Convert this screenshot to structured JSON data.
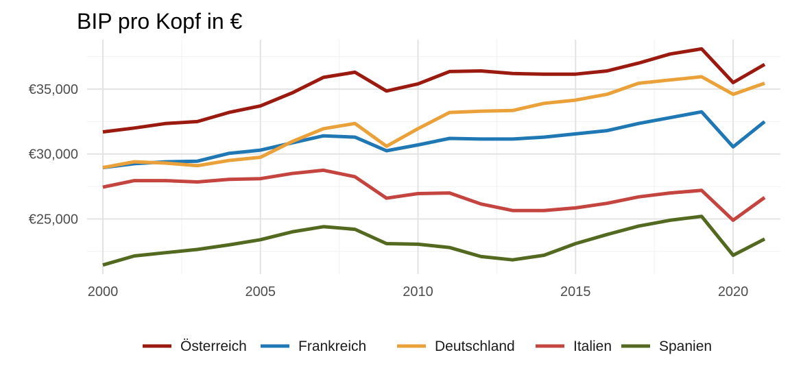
{
  "chart_data": {
    "type": "line",
    "title": "BIP pro Kopf in €",
    "xlabel": "",
    "ylabel": "",
    "x": [
      2000,
      2001,
      2002,
      2003,
      2004,
      2005,
      2006,
      2007,
      2008,
      2009,
      2010,
      2011,
      2012,
      2013,
      2014,
      2015,
      2016,
      2017,
      2018,
      2019,
      2020,
      2021
    ],
    "xlim": [
      1999.5,
      2021.5
    ],
    "ylim": [
      20750,
      38800
    ],
    "x_ticks": [
      2000,
      2005,
      2010,
      2015,
      2020
    ],
    "x_tick_labels": [
      "2000",
      "2005",
      "2010",
      "2015",
      "2020"
    ],
    "y_ticks": [
      25000,
      30000,
      35000
    ],
    "y_tick_labels": [
      "€25,000",
      "€30,000",
      "€35,000"
    ],
    "grid": true,
    "legend_position": "bottom",
    "series": [
      {
        "name": "Österreich",
        "color": "#9b1a10",
        "values": [
          31700,
          32000,
          32350,
          32500,
          33200,
          33700,
          34700,
          35900,
          36300,
          34850,
          35400,
          36350,
          36400,
          36200,
          36150,
          36150,
          36400,
          37000,
          37700,
          38100,
          35500,
          36900
        ]
      },
      {
        "name": "Frankreich",
        "color": "#1f78b4",
        "values": [
          28950,
          29250,
          29400,
          29450,
          30050,
          30300,
          30850,
          31400,
          31300,
          30250,
          30700,
          31200,
          31150,
          31150,
          31300,
          31550,
          31800,
          32350,
          32800,
          33250,
          30550,
          32500
        ]
      },
      {
        "name": "Deutschland",
        "color": "#eba13a",
        "values": [
          28950,
          29400,
          29300,
          29100,
          29500,
          29750,
          30950,
          31950,
          32350,
          30600,
          31950,
          33200,
          33300,
          33350,
          33900,
          34150,
          34600,
          35450,
          35700,
          35950,
          34600,
          35450
        ]
      },
      {
        "name": "Italien",
        "color": "#c4453f",
        "values": [
          27450,
          27950,
          27950,
          27850,
          28050,
          28100,
          28500,
          28750,
          28250,
          26600,
          26950,
          27000,
          26150,
          25650,
          25650,
          25850,
          26200,
          26700,
          27000,
          27200,
          24900,
          26650
        ]
      },
      {
        "name": "Spanien",
        "color": "#52691f",
        "values": [
          21450,
          22150,
          22400,
          22650,
          23000,
          23400,
          24000,
          24400,
          24200,
          23100,
          23050,
          22800,
          22100,
          21850,
          22200,
          23100,
          23800,
          24450,
          24900,
          25200,
          22200,
          23450
        ]
      }
    ]
  }
}
